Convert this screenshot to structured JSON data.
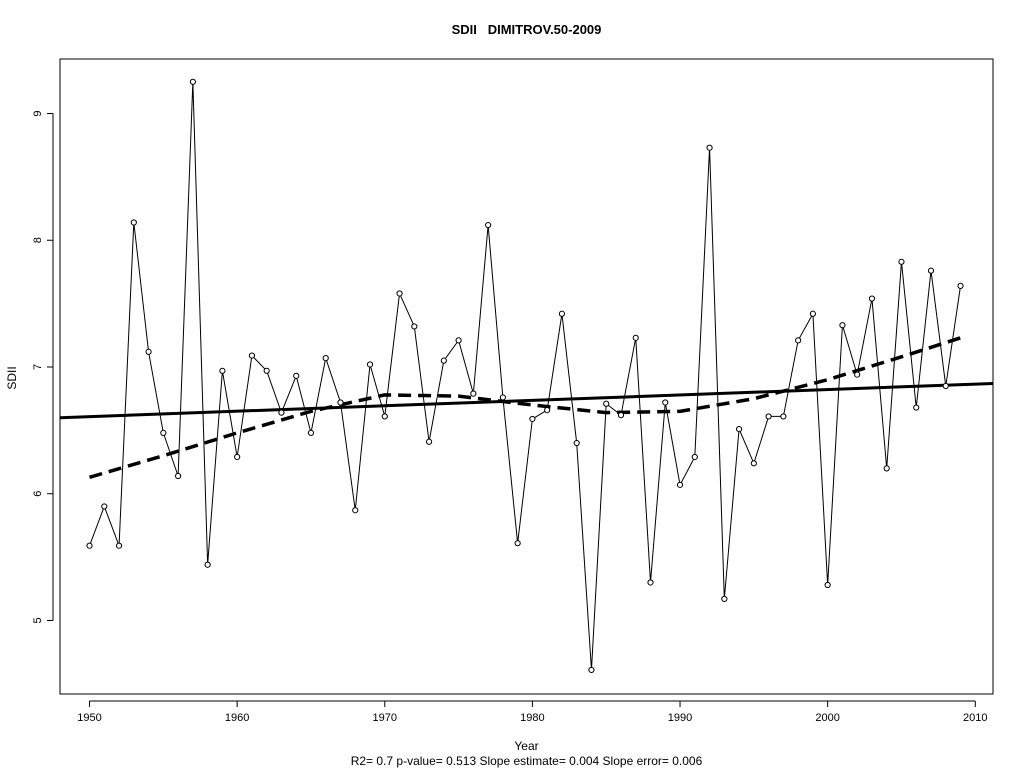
{
  "chart_data": {
    "type": "line",
    "title": "SDII   DIMITROV.50-2009",
    "xlabel": "Year",
    "ylabel": "SDII",
    "subtitle": "R2= 0.7  p-value= 0.513  Slope estimate= 0.004  Slope error= 0.006",
    "xlim": [
      1948,
      2011.2
    ],
    "ylim": [
      4.42,
      9.43
    ],
    "x_ticks": [
      1950,
      1960,
      1970,
      1980,
      1990,
      2000,
      2010
    ],
    "y_ticks": [
      5,
      6,
      7,
      8,
      9
    ],
    "series": [
      {
        "style": "line-with-open-circles",
        "x": [
          1950,
          1951,
          1952,
          1953,
          1954,
          1955,
          1956,
          1957,
          1958,
          1959,
          1960,
          1961,
          1962,
          1963,
          1964,
          1965,
          1966,
          1967,
          1968,
          1969,
          1970,
          1971,
          1972,
          1973,
          1974,
          1975,
          1976,
          1977,
          1978,
          1979,
          1980,
          1981,
          1982,
          1983,
          1984,
          1985,
          1986,
          1987,
          1988,
          1989,
          1990,
          1991,
          1992,
          1993,
          1994,
          1995,
          1996,
          1997,
          1998,
          1999,
          2000,
          2001,
          2002,
          2003,
          2004,
          2005,
          2006,
          2007,
          2008,
          2009
        ],
        "y": [
          5.59,
          5.9,
          5.59,
          8.14,
          7.12,
          6.48,
          6.14,
          9.25,
          5.44,
          6.97,
          6.29,
          7.09,
          6.97,
          6.64,
          6.93,
          6.48,
          7.07,
          6.72,
          5.87,
          7.02,
          6.61,
          7.58,
          7.32,
          6.41,
          7.05,
          7.21,
          6.79,
          8.12,
          6.76,
          5.61,
          6.59,
          6.66,
          7.42,
          6.4,
          4.61,
          6.71,
          6.62,
          7.23,
          5.3,
          6.72,
          6.07,
          6.29,
          8.73,
          5.17,
          6.51,
          6.24,
          6.61,
          6.61,
          7.21,
          7.42,
          5.28,
          7.33,
          6.94,
          7.54,
          6.2,
          7.83,
          6.68,
          7.76,
          6.85,
          7.64
        ]
      },
      {
        "style": "linear-trend-solid",
        "x": [
          1948,
          2011.2
        ],
        "y": [
          6.6,
          6.87
        ]
      },
      {
        "style": "smoothed-dashed",
        "x": [
          1950,
          1955,
          1960,
          1965,
          1970,
          1975,
          1980,
          1985,
          1990,
          1995,
          2000,
          2005,
          2009
        ],
        "y": [
          6.13,
          6.3,
          6.48,
          6.65,
          6.78,
          6.77,
          6.7,
          6.64,
          6.65,
          6.75,
          6.9,
          7.08,
          7.23
        ]
      }
    ],
    "grid": false,
    "legend": "none"
  }
}
